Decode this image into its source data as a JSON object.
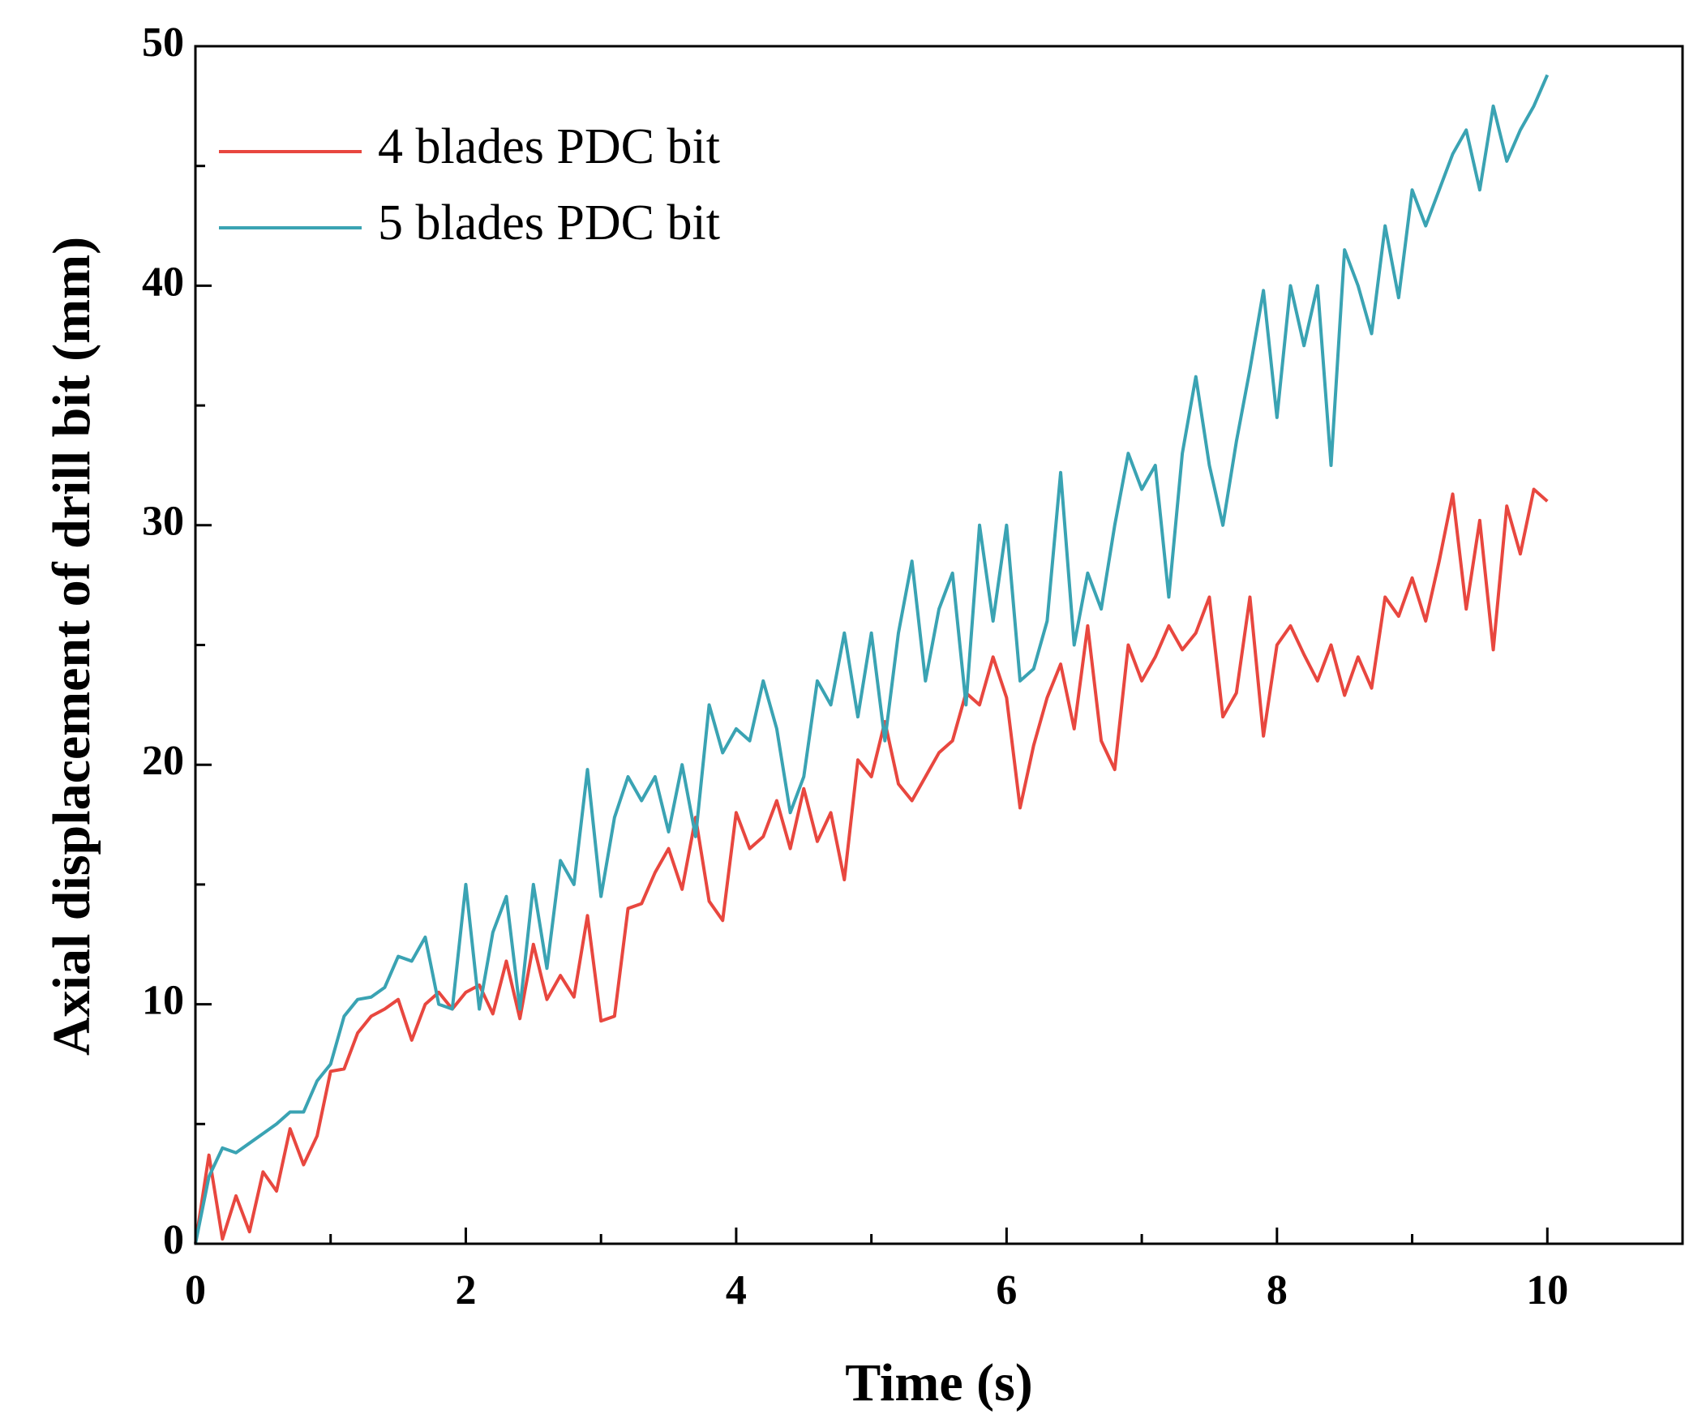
{
  "chart_data": {
    "type": "line",
    "xlabel": "Time (s)",
    "ylabel": "Axial displacement of drill bit (mm)",
    "x": [
      0,
      0.1,
      0.2,
      0.3,
      0.4,
      0.5,
      0.6,
      0.7,
      0.8,
      0.9,
      1,
      1.1,
      1.2,
      1.3,
      1.4,
      1.5,
      1.6,
      1.7,
      1.8,
      1.9,
      2,
      2.1,
      2.2,
      2.3,
      2.4,
      2.5,
      2.6,
      2.7,
      2.8,
      2.9,
      3,
      3.1,
      3.2,
      3.3,
      3.4,
      3.5,
      3.6,
      3.7,
      3.8,
      3.9,
      4,
      4.1,
      4.2,
      4.3,
      4.4,
      4.5,
      4.6,
      4.7,
      4.8,
      4.9,
      5,
      5.1,
      5.2,
      5.3,
      5.4,
      5.5,
      5.6,
      5.7,
      5.8,
      5.9,
      6,
      6.1,
      6.2,
      6.3,
      6.4,
      6.5,
      6.6,
      6.7,
      6.8,
      6.9,
      7,
      7.1,
      7.2,
      7.3,
      7.4,
      7.5,
      7.6,
      7.7,
      7.8,
      7.9,
      8,
      8.1,
      8.2,
      8.3,
      8.4,
      8.5,
      8.6,
      8.7,
      8.8,
      8.9,
      9,
      9.1,
      9.2,
      9.3,
      9.4,
      9.5,
      9.6,
      9.7,
      9.8,
      9.9,
      10
    ],
    "series": [
      {
        "name": "4 blades PDC bit",
        "color": "#e8473f",
        "values": [
          0,
          3.7,
          0.2,
          2,
          0.5,
          3,
          2.2,
          4.8,
          3.3,
          4.5,
          7.2,
          7.3,
          8.8,
          9.5,
          9.8,
          10.2,
          8.5,
          10,
          10.5,
          9.8,
          10.5,
          10.8,
          9.6,
          11.8,
          9.4,
          12.5,
          10.2,
          11.2,
          10.3,
          13.7,
          9.3,
          9.5,
          14,
          14.2,
          15.5,
          16.5,
          14.8,
          17.8,
          14.3,
          13.5,
          18,
          16.5,
          17,
          18.5,
          16.5,
          19,
          16.8,
          18,
          15.2,
          20.2,
          19.5,
          21.8,
          19.2,
          18.5,
          19.5,
          20.5,
          21,
          23,
          22.5,
          24.5,
          22.8,
          18.2,
          20.8,
          22.8,
          24.2,
          21.5,
          25.8,
          21,
          19.8,
          25,
          23.5,
          24.5,
          25.8,
          24.8,
          25.5,
          27,
          22,
          23,
          27,
          21.2,
          25,
          25.8,
          24.6,
          23.5,
          25,
          22.9,
          24.5,
          23.2,
          27,
          26.2,
          27.8,
          26,
          28.5,
          31.3,
          26.5,
          30.2,
          24.8,
          30.8,
          28.8,
          31.5,
          31
        ]
      },
      {
        "name": "5 blades PDC bit",
        "color": "#3aa3b3",
        "values": [
          0,
          2.8,
          4,
          3.8,
          4.2,
          4.6,
          5,
          5.5,
          5.5,
          6.8,
          7.5,
          9.5,
          10.2,
          10.3,
          10.7,
          12,
          11.8,
          12.8,
          10,
          9.8,
          15,
          9.8,
          13,
          14.5,
          9.8,
          15,
          11.5,
          16,
          15,
          19.8,
          14.5,
          17.8,
          19.5,
          18.5,
          19.5,
          17.2,
          20,
          17,
          22.5,
          20.5,
          21.5,
          21,
          23.5,
          21.5,
          18,
          19.5,
          23.5,
          22.5,
          25.5,
          22,
          25.5,
          21,
          25.5,
          28.5,
          23.5,
          26.5,
          28,
          22.5,
          30,
          26,
          30,
          23.5,
          24,
          26,
          32.2,
          25,
          28,
          26.5,
          30,
          33,
          31.5,
          32.5,
          27,
          33,
          36.2,
          32.5,
          30,
          33.5,
          36.5,
          39.8,
          34.5,
          40,
          37.5,
          40,
          32.5,
          41.5,
          40,
          38,
          42.5,
          39.5,
          44,
          42.5,
          44,
          45.5,
          46.5,
          44,
          47.5,
          45.2,
          46.5,
          47.5,
          48.8
        ]
      }
    ],
    "xlim": [
      0,
      11
    ],
    "xticks": [
      0,
      2,
      4,
      6,
      8,
      10
    ],
    "xminor": [
      1,
      3,
      5,
      7,
      9,
      11
    ],
    "ylim": [
      0,
      50
    ],
    "yticks": [
      0,
      10,
      20,
      30,
      40,
      50
    ],
    "yminor": [
      5,
      15,
      25,
      35,
      45
    ],
    "legend": "upper left"
  }
}
